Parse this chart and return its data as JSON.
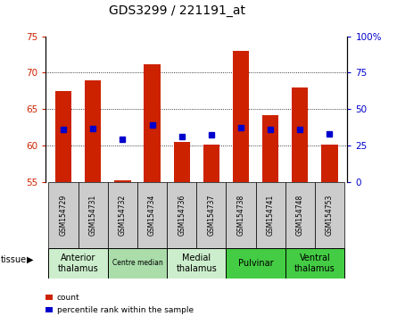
{
  "title": "GDS3299 / 221191_at",
  "samples": [
    "GSM154729",
    "GSM154731",
    "GSM154732",
    "GSM154734",
    "GSM154736",
    "GSM154737",
    "GSM154738",
    "GSM154741",
    "GSM154748",
    "GSM154753"
  ],
  "count_values": [
    67.5,
    69.0,
    55.2,
    71.2,
    60.5,
    60.1,
    73.0,
    64.2,
    68.0,
    60.1
  ],
  "percentile_values": [
    62.2,
    62.3,
    60.9,
    62.8,
    61.2,
    61.5,
    62.4,
    62.2,
    62.2,
    61.6
  ],
  "count_base": 55.0,
  "ylim_left": [
    55,
    75
  ],
  "ylim_right": [
    0,
    100
  ],
  "yticks_left": [
    55,
    60,
    65,
    70,
    75
  ],
  "yticks_right": [
    0,
    25,
    50,
    75,
    100
  ],
  "ytick_labels_right": [
    "0",
    "25",
    "50",
    "75",
    "100%"
  ],
  "bar_color": "#cc2200",
  "dot_color": "#0000cc",
  "tissue_groups": [
    {
      "label": "Anterior\nthalamus",
      "start": 0,
      "end": 2,
      "color": "#cceecc"
    },
    {
      "label": "Centre median",
      "start": 2,
      "end": 4,
      "color": "#aaddaa"
    },
    {
      "label": "Medial\nthalamus",
      "start": 4,
      "end": 6,
      "color": "#cceecc"
    },
    {
      "label": "Pulvinar",
      "start": 6,
      "end": 8,
      "color": "#44cc44"
    },
    {
      "label": "Ventral\nthalamus",
      "start": 8,
      "end": 10,
      "color": "#44cc44"
    }
  ],
  "tissue_label": "tissue",
  "legend_count_label": "count",
  "legend_pct_label": "percentile rank within the sample",
  "title_fontsize": 10,
  "tick_fontsize": 7.5,
  "bar_width": 0.55,
  "sample_cell_color": "#cccccc",
  "fig_bg": "#ffffff"
}
